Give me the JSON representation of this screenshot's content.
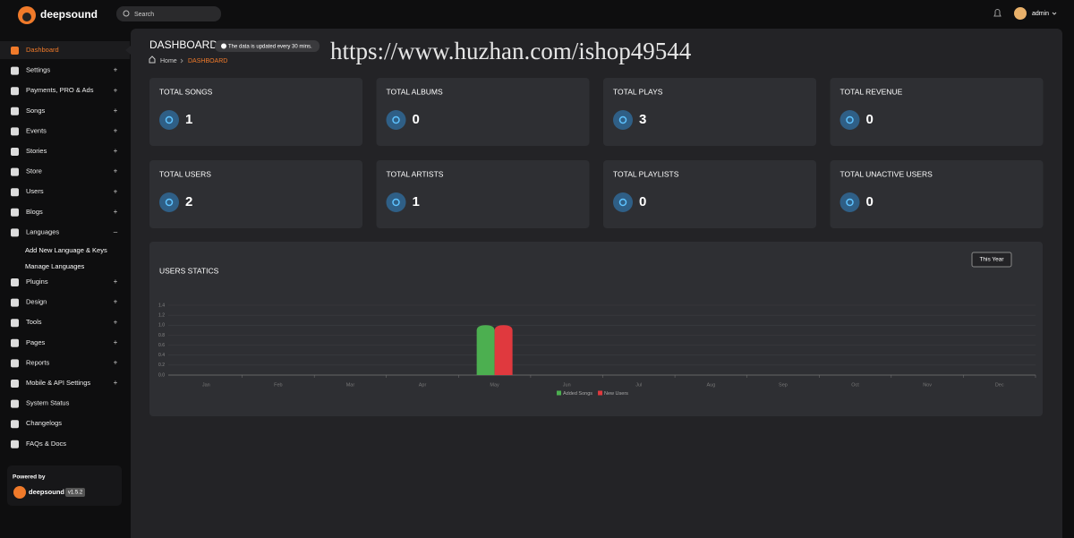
{
  "header": {
    "brand": "deepsound",
    "search_placeholder": "Search",
    "user": "admin"
  },
  "sidebar": {
    "items": [
      {
        "label": "Dashboard"
      },
      {
        "label": "Settings",
        "toggle": "+"
      },
      {
        "label": "Payments, PRO & Ads",
        "toggle": "+"
      },
      {
        "label": "Songs",
        "toggle": "+"
      },
      {
        "label": "Events",
        "toggle": "+"
      },
      {
        "label": "Stories",
        "toggle": "+"
      },
      {
        "label": "Store",
        "toggle": "+"
      },
      {
        "label": "Users",
        "toggle": "+"
      },
      {
        "label": "Blogs",
        "toggle": "+"
      },
      {
        "label": "Languages",
        "toggle": "–",
        "children": [
          "Add New Language & Keys",
          "Manage Languages"
        ]
      },
      {
        "label": "Plugins",
        "toggle": "+"
      },
      {
        "label": "Design",
        "toggle": "+"
      },
      {
        "label": "Tools",
        "toggle": "+"
      },
      {
        "label": "Pages",
        "toggle": "+"
      },
      {
        "label": "Reports",
        "toggle": "+"
      },
      {
        "label": "Mobile & API Settings",
        "toggle": "+"
      },
      {
        "label": "System Status"
      },
      {
        "label": "Changelogs"
      },
      {
        "label": "FAQs & Docs"
      }
    ],
    "powered_by": "Powered by",
    "brand": "deepsound",
    "version": "v1.5.2"
  },
  "page": {
    "title": "DASHBOARD",
    "notice": "The data is updated every 30 mins.",
    "breadcrumb": [
      "Home",
      "DASHBOARD"
    ]
  },
  "watermark": "https://www.huzhan.com/ishop49544",
  "stats": [
    {
      "label": "TOTAL SONGS",
      "value": 1
    },
    {
      "label": "TOTAL ALBUMS",
      "value": 0
    },
    {
      "label": "TOTAL PLAYS",
      "value": 3
    },
    {
      "label": "TOTAL REVENUE",
      "value": 0
    },
    {
      "label": "TOTAL USERS",
      "value": 2
    },
    {
      "label": "TOTAL ARTISTS",
      "value": 1
    },
    {
      "label": "TOTAL PLAYLISTS",
      "value": 0
    },
    {
      "label": "TOTAL UNACTIVE USERS",
      "value": 0
    }
  ],
  "chart_filter": "This Year",
  "chart_data": {
    "type": "bar",
    "title": "USERS STATICS",
    "categories": [
      "Jan",
      "Feb",
      "Mar",
      "Apr",
      "May",
      "Jun",
      "Jul",
      "Aug",
      "Sep",
      "Oct",
      "Nov",
      "Dec"
    ],
    "series": [
      {
        "name": "Added Songs",
        "color": "#4caf50",
        "values": [
          0,
          0,
          0,
          0,
          1,
          0,
          0,
          0,
          0,
          0,
          0,
          0
        ]
      },
      {
        "name": "New Users",
        "color": "#e0393e",
        "values": [
          0,
          0,
          0,
          0,
          1,
          0,
          0,
          0,
          0,
          0,
          0,
          0
        ]
      }
    ],
    "ylim": [
      0,
      1.4
    ],
    "yticks": [
      {
        "value": 0,
        "label": "0.0"
      },
      0.2,
      0.4,
      0.6,
      0.8,
      {
        "value": 1,
        "label": "1.0"
      },
      1.2,
      1.4
    ],
    "grid": true,
    "legend": "bottom"
  }
}
